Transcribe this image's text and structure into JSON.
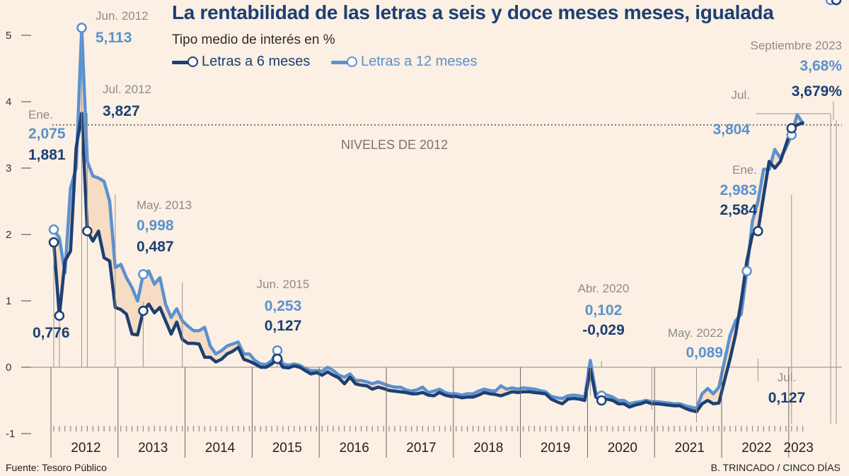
{
  "title": "La rentabilidad de las letras a seis y doce meses meses, igualada",
  "subtitle": "Tipo medio de interés en %",
  "legend": {
    "six": "Letras a 6 meses",
    "twelve": "Letras a 12 meses"
  },
  "reference_label": "NIVELES DE 2012",
  "source": "Fuente: Tesoro Público",
  "credit": "B. TRINCADO / CINCO DÍAS",
  "colors": {
    "six": "#1d3f73",
    "twelve": "#5b91cf",
    "fill": "#f6dcc2",
    "background": "#fbf0e3",
    "annotation_gray": "#8c8c8c"
  },
  "chart_data": {
    "type": "line",
    "title": "La rentabilidad de las letras a seis y doce meses meses, igualada",
    "ylabel": "Tipo medio de interés en %",
    "xlabel": "",
    "ylim": [
      -1,
      5
    ],
    "y_ticks": [
      -1,
      0,
      1,
      2,
      3,
      4,
      5
    ],
    "y_tick_labels": [
      "-1",
      "0",
      "1",
      "2",
      "3",
      "4",
      "5"
    ],
    "x_start": "2012-01",
    "x_end": "2023-09",
    "x_year_labels": [
      "2012",
      "2013",
      "2014",
      "2015",
      "2016",
      "2017",
      "2018",
      "2019",
      "2020",
      "2021",
      "2022",
      "2023"
    ],
    "reference_line": {
      "value": 3.65,
      "label": "NIVELES DE 2012"
    },
    "series": [
      {
        "name": "Letras a 6 meses",
        "color": "#1d3f73",
        "values": [
          1.881,
          0.776,
          1.6,
          1.75,
          3.3,
          3.827,
          2.05,
          1.9,
          2.05,
          1.65,
          1.6,
          0.9,
          0.87,
          0.8,
          0.5,
          0.487,
          0.85,
          0.95,
          0.82,
          0.9,
          0.7,
          0.5,
          0.68,
          0.42,
          0.36,
          0.36,
          0.35,
          0.15,
          0.15,
          0.08,
          0.12,
          0.2,
          0.24,
          0.3,
          0.12,
          0.09,
          0.05,
          0.0,
          0.0,
          0.05,
          0.127,
          0.0,
          -0.01,
          0.02,
          0.0,
          -0.05,
          -0.1,
          -0.08,
          -0.12,
          -0.07,
          -0.12,
          -0.16,
          -0.25,
          -0.15,
          -0.25,
          -0.27,
          -0.28,
          -0.33,
          -0.3,
          -0.32,
          -0.35,
          -0.36,
          -0.37,
          -0.38,
          -0.4,
          -0.4,
          -0.38,
          -0.42,
          -0.43,
          -0.38,
          -0.42,
          -0.44,
          -0.44,
          -0.46,
          -0.45,
          -0.45,
          -0.42,
          -0.38,
          -0.4,
          -0.41,
          -0.43,
          -0.4,
          -0.37,
          -0.38,
          -0.37,
          -0.37,
          -0.38,
          -0.39,
          -0.4,
          -0.48,
          -0.52,
          -0.55,
          -0.48,
          -0.47,
          -0.48,
          -0.5,
          -0.029,
          -0.45,
          -0.5,
          -0.48,
          -0.5,
          -0.55,
          -0.55,
          -0.6,
          -0.57,
          -0.55,
          -0.52,
          -0.55,
          -0.55,
          -0.56,
          -0.57,
          -0.58,
          -0.58,
          -0.62,
          -0.65,
          -0.67,
          -0.55,
          -0.5,
          -0.55,
          -0.54,
          -0.2,
          0.127,
          0.5,
          1.0,
          1.6,
          2.0,
          2.05,
          2.584,
          3.1,
          3.0,
          3.1,
          3.35,
          3.6,
          3.65,
          3.679
        ]
      },
      {
        "name": "Letras a 12 meses",
        "color": "#5b91cf",
        "values": [
          2.075,
          1.95,
          1.42,
          2.7,
          3.0,
          5.113,
          3.1,
          2.88,
          2.85,
          2.8,
          2.5,
          1.5,
          1.55,
          1.35,
          1.2,
          0.998,
          1.4,
          1.45,
          1.25,
          1.35,
          0.95,
          0.75,
          0.88,
          0.7,
          0.62,
          0.55,
          0.55,
          0.6,
          0.32,
          0.2,
          0.25,
          0.32,
          0.35,
          0.38,
          0.2,
          0.2,
          0.1,
          0.05,
          0.04,
          0.1,
          0.253,
          0.05,
          0.03,
          0.05,
          0.03,
          -0.02,
          -0.05,
          -0.05,
          -0.06,
          0.0,
          -0.05,
          -0.12,
          -0.15,
          -0.1,
          -0.2,
          -0.2,
          -0.22,
          -0.25,
          -0.22,
          -0.25,
          -0.28,
          -0.3,
          -0.3,
          -0.34,
          -0.36,
          -0.34,
          -0.3,
          -0.38,
          -0.36,
          -0.33,
          -0.38,
          -0.4,
          -0.4,
          -0.42,
          -0.4,
          -0.4,
          -0.36,
          -0.33,
          -0.35,
          -0.36,
          -0.28,
          -0.33,
          -0.31,
          -0.33,
          -0.31,
          -0.32,
          -0.33,
          -0.35,
          -0.37,
          -0.44,
          -0.46,
          -0.47,
          -0.43,
          -0.42,
          -0.43,
          -0.45,
          0.102,
          -0.4,
          -0.43,
          -0.42,
          -0.45,
          -0.5,
          -0.5,
          -0.55,
          -0.53,
          -0.52,
          -0.5,
          -0.52,
          -0.52,
          -0.53,
          -0.54,
          -0.55,
          -0.55,
          -0.58,
          -0.6,
          -0.62,
          -0.4,
          -0.32,
          -0.4,
          -0.3,
          0.089,
          0.48,
          0.7,
          0.8,
          1.45,
          2.2,
          2.5,
          2.983,
          2.98,
          3.28,
          3.15,
          3.3,
          3.5,
          3.804,
          3.68
        ]
      }
    ],
    "annotations": [
      {
        "series": "Letras a 12 meses",
        "date_label": "Ene.",
        "value_label": "2,075"
      },
      {
        "series": "Letras a 6 meses",
        "date_label": "",
        "value_label": "1,881"
      },
      {
        "series": "Letras a 6 meses",
        "date_label": "",
        "value_label": "0,776"
      },
      {
        "series": "Letras a 12 meses",
        "date_label": "Jun. 2012",
        "value_label": "5,113"
      },
      {
        "series": "Letras a 6 meses",
        "date_label": "Jul. 2012",
        "value_label": "3,827"
      },
      {
        "series": "Letras a 12 meses",
        "date_label": "May. 2013",
        "value_label": "0,998"
      },
      {
        "series": "Letras a 6 meses",
        "date_label": "",
        "value_label": "0,487"
      },
      {
        "series": "Letras a 12 meses",
        "date_label": "Jun. 2015",
        "value_label": "0,253"
      },
      {
        "series": "Letras a 6 meses",
        "date_label": "",
        "value_label": "0,127"
      },
      {
        "series": "Letras a 12 meses",
        "date_label": "Abr. 2020",
        "value_label": "0,102"
      },
      {
        "series": "Letras a 6 meses",
        "date_label": "",
        "value_label": "-0,029"
      },
      {
        "series": "Letras a 12 meses",
        "date_label": "May. 2022",
        "value_label": "0,089"
      },
      {
        "series": "Letras a 6 meses",
        "date_label": "Jul.",
        "value_label": "0,127"
      },
      {
        "series": "Letras a 12 meses",
        "date_label": "Ene.",
        "value_label": "2,983"
      },
      {
        "series": "Letras a 6 meses",
        "date_label": "",
        "value_label": "2,584"
      },
      {
        "series": "Letras a 12 meses",
        "date_label": "Jul.",
        "value_label": "3,804"
      },
      {
        "series": "Letras a 12 meses",
        "date_label": "Septiembre 2023",
        "value_label": "3,68%"
      },
      {
        "series": "Letras a 6 meses",
        "date_label": "",
        "value_label": "3,679%"
      }
    ]
  }
}
